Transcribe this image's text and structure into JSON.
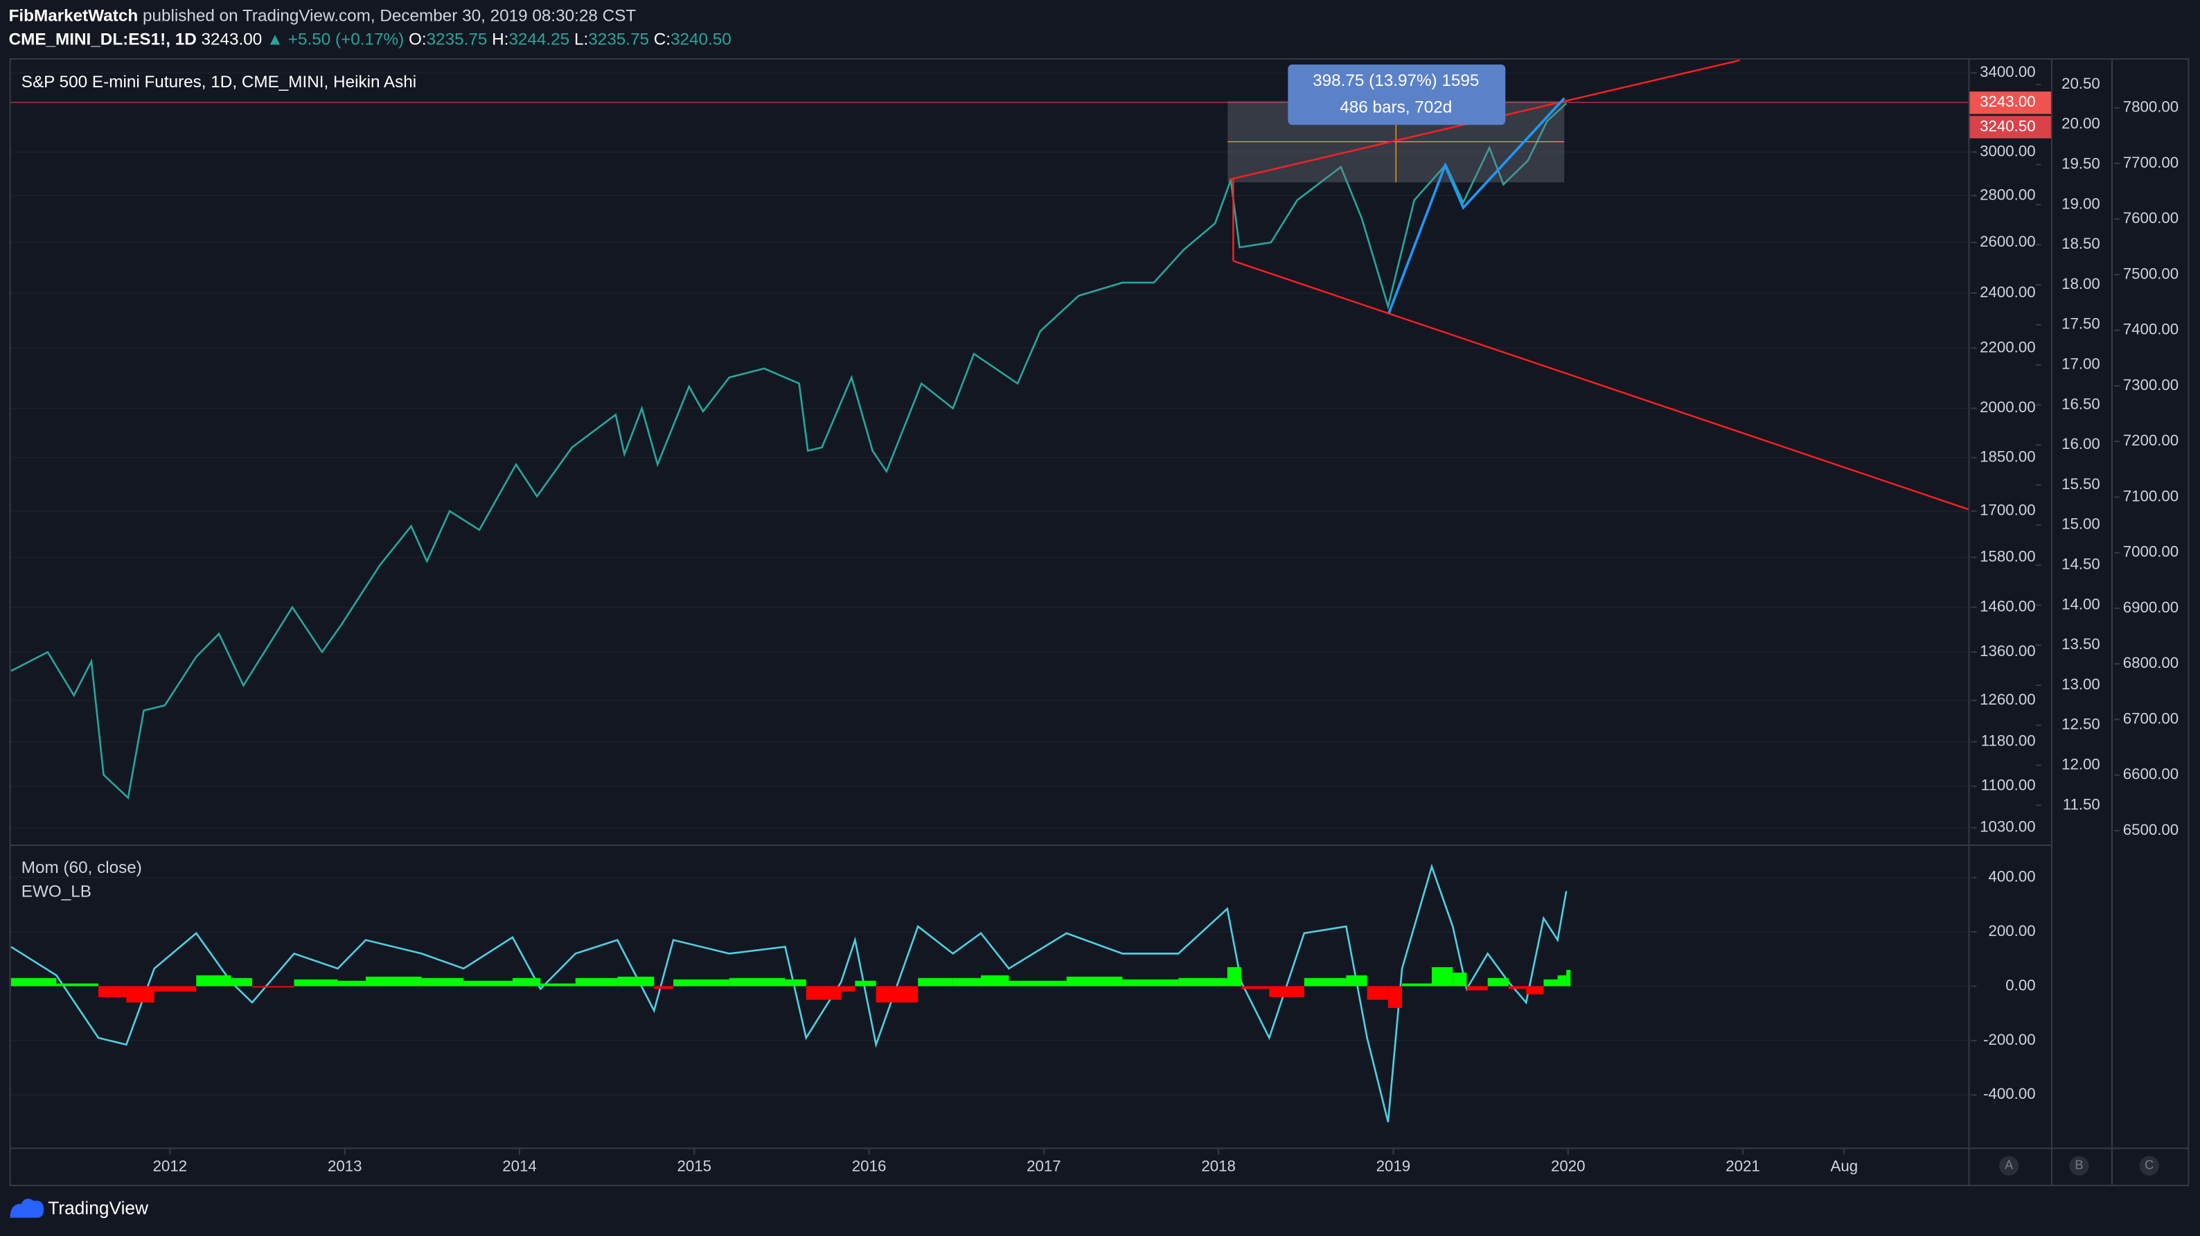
{
  "header": {
    "author": "FibMarketWatch",
    "published": "published on TradingView.com, December 30, 2019 08:30:28 CST",
    "symbol": "CME_MINI_DL:ES1!, 1D",
    "last": "3243.00",
    "change": "▲ +5.50 (+0.17%)",
    "ohlc": [
      {
        "key": "O:",
        "value": "3235.75"
      },
      {
        "key": "H:",
        "value": "3244.25"
      },
      {
        "key": "L:",
        "value": "3235.75"
      },
      {
        "key": "C:",
        "value": "3240.50"
      }
    ]
  },
  "chart_data": [
    {
      "type": "line",
      "title": "S&P 500 E-mini Futures, 1D, CME_MINI, Heikin Ashi",
      "log_scale": true,
      "xlim": [
        2011.085,
        2022.29
      ],
      "x": [
        2011.09,
        2011.3,
        2011.45,
        2011.55,
        2011.62,
        2011.76,
        2011.85,
        2011.97,
        2012.15,
        2012.28,
        2012.42,
        2012.7,
        2012.87,
        2012.98,
        2013.2,
        2013.38,
        2013.47,
        2013.6,
        2013.77,
        2013.98,
        2014.1,
        2014.3,
        2014.55,
        2014.6,
        2014.7,
        2014.79,
        2014.97,
        2015.05,
        2015.2,
        2015.4,
        2015.6,
        2015.65,
        2015.73,
        2015.9,
        2016.02,
        2016.1,
        2016.3,
        2016.48,
        2016.6,
        2016.85,
        2016.98,
        2017.2,
        2017.45,
        2017.63,
        2017.8,
        2017.98,
        2018.07,
        2018.12,
        2018.3,
        2018.45,
        2018.7,
        2018.82,
        2018.97,
        2019.12,
        2019.3,
        2019.4,
        2019.55,
        2019.63,
        2019.77,
        2019.88,
        2019.99
      ],
      "series": [
        {
          "color": "#26a69a",
          "values": [
            1320,
            1360,
            1270,
            1340,
            1120,
            1080,
            1240,
            1250,
            1350,
            1400,
            1290,
            1460,
            1360,
            1420,
            1560,
            1660,
            1570,
            1700,
            1650,
            1830,
            1740,
            1880,
            1980,
            1860,
            2000,
            1830,
            2070,
            1990,
            2100,
            2130,
            2080,
            1870,
            1880,
            2100,
            1870,
            1810,
            2080,
            2000,
            2180,
            2080,
            2260,
            2390,
            2440,
            2440,
            2570,
            2680,
            2870,
            2580,
            2600,
            2780,
            2930,
            2700,
            2350,
            2780,
            2940,
            2770,
            3020,
            2850,
            2960,
            3150,
            3240
          ]
        }
      ],
      "ylim": [
        1003,
        3476
      ],
      "yticks": [
        {
          "value": 3400,
          "label": "3400.00"
        },
        {
          "value": 3000,
          "label": "3000.00"
        },
        {
          "value": 2800,
          "label": "2800.00"
        },
        {
          "value": 2600,
          "label": "2600.00"
        },
        {
          "value": 2400,
          "label": "2400.00"
        },
        {
          "value": 2200,
          "label": "2200.00"
        },
        {
          "value": 2000,
          "label": "2000.00"
        },
        {
          "value": 1850,
          "label": "1850.00"
        },
        {
          "value": 1700,
          "label": "1700.00"
        },
        {
          "value": 1580,
          "label": "1580.00"
        },
        {
          "value": 1460,
          "label": "1460.00"
        },
        {
          "value": 1360,
          "label": "1360.00"
        },
        {
          "value": 1260,
          "label": "1260.00"
        },
        {
          "value": 1180,
          "label": "1180.00"
        },
        {
          "value": 1100,
          "label": "1100.00"
        },
        {
          "value": 1030,
          "label": "1030.00"
        }
      ],
      "price_labels": [
        {
          "value": 3243,
          "label": "3243.00"
        },
        {
          "value": 3240.5,
          "label": "3240.50"
        }
      ],
      "y2lim": [
        11.01,
        20.82
      ],
      "y2ticks": [
        {
          "value": 20.5,
          "label": "20.50"
        },
        {
          "value": 20,
          "label": "20.00"
        },
        {
          "value": 19.5,
          "label": "19.50"
        },
        {
          "value": 19,
          "label": "19.00"
        },
        {
          "value": 18.5,
          "label": "18.50"
        },
        {
          "value": 18,
          "label": "18.00"
        },
        {
          "value": 17.5,
          "label": "17.50"
        },
        {
          "value": 17,
          "label": "17.00"
        },
        {
          "value": 16.5,
          "label": "16.50"
        },
        {
          "value": 16,
          "label": "16.00"
        },
        {
          "value": 15.5,
          "label": "15.50"
        },
        {
          "value": 15,
          "label": "15.00"
        },
        {
          "value": 14.5,
          "label": "14.50"
        },
        {
          "value": 14,
          "label": "14.00"
        },
        {
          "value": 13.5,
          "label": "13.50"
        },
        {
          "value": 13,
          "label": "13.00"
        },
        {
          "value": 12.5,
          "label": "12.50"
        },
        {
          "value": 12,
          "label": "12.00"
        },
        {
          "value": 11.5,
          "label": "11.50"
        }
      ],
      "y3lim": [
        6475,
        7888
      ],
      "y3ticks": [
        {
          "value": 7800,
          "label": "7800.00"
        },
        {
          "value": 7700,
          "label": "7700.00"
        },
        {
          "value": 7600,
          "label": "7600.00"
        },
        {
          "value": 7500,
          "label": "7500.00"
        },
        {
          "value": 7400,
          "label": "7400.00"
        },
        {
          "value": 7300,
          "label": "7300.00"
        },
        {
          "value": 7200,
          "label": "7200.00"
        },
        {
          "value": 7100,
          "label": "7100.00"
        },
        {
          "value": 7000,
          "label": "7000.00"
        },
        {
          "value": 6900,
          "label": "6900.00"
        },
        {
          "value": 6800,
          "label": "6800.00"
        },
        {
          "value": 6700,
          "label": "6700.00"
        },
        {
          "value": 6600,
          "label": "6600.00"
        },
        {
          "value": 6500,
          "label": "6500.00"
        }
      ],
      "annotations": [
        "398.75 (13.97%) 1595",
        "486 bars, 702d"
      ]
    },
    {
      "type": "line",
      "xlim": [
        2011.085,
        2022.29
      ],
      "x": [
        2011.09,
        2011.35,
        2011.59,
        2011.75,
        2011.91,
        2012.15,
        2012.35,
        2012.47,
        2012.71,
        2012.96,
        2013.12,
        2013.44,
        2013.68,
        2013.96,
        2014.12,
        2014.32,
        2014.56,
        2014.77,
        2014.88,
        2015.2,
        2015.52,
        2015.64,
        2015.84,
        2015.92,
        2016.04,
        2016.28,
        2016.48,
        2016.64,
        2016.8,
        2017.13,
        2017.45,
        2017.77,
        2018.05,
        2018.13,
        2018.29,
        2018.49,
        2018.73,
        2018.85,
        2018.97,
        2019.05,
        2019.22,
        2019.34,
        2019.42,
        2019.54,
        2019.66,
        2019.76,
        2019.86,
        2019.94,
        2019.99
      ],
      "series": [
        {
          "name": "Mom (60, close)",
          "color": "#4dd0e1",
          "values": [
            145,
            40,
            -190,
            -215,
            65,
            195,
            15,
            -60,
            120,
            65,
            170,
            120,
            65,
            180,
            -10,
            120,
            170,
            -90,
            170,
            120,
            145,
            -190,
            15,
            170,
            -215,
            220,
            120,
            195,
            65,
            195,
            120,
            120,
            285,
            15,
            -190,
            195,
            220,
            -190,
            -500,
            65,
            440,
            220,
            -10,
            120,
            15,
            -60,
            250,
            170,
            350
          ]
        },
        {
          "name": "EWO_LB",
          "style": "histogram",
          "color": "#00ff00",
          "negative_color": "#ff0000",
          "values": [
            30,
            10,
            -40,
            -60,
            -20,
            40,
            30,
            -5,
            25,
            20,
            35,
            30,
            20,
            30,
            10,
            30,
            35,
            -10,
            25,
            30,
            25,
            -50,
            -20,
            20,
            -60,
            30,
            30,
            40,
            20,
            35,
            25,
            30,
            70,
            -10,
            -40,
            30,
            40,
            -50,
            -80,
            10,
            70,
            50,
            -15,
            30,
            -10,
            -30,
            25,
            40,
            60
          ]
        }
      ],
      "ylim": [
        -594,
        516
      ],
      "yticks": [
        {
          "value": 400,
          "label": "400.00"
        },
        {
          "value": 200,
          "label": "200.00"
        },
        {
          "value": 0,
          "label": "0.00"
        },
        {
          "value": -200,
          "label": "-200.00"
        },
        {
          "value": -400,
          "label": "-400.00"
        }
      ],
      "xticks": [
        2012,
        2013,
        2014,
        2015,
        2016,
        2017,
        2018,
        2019,
        2020,
        2021,
        {
          "value": 2021.58,
          "label": "Aug"
        }
      ]
    }
  ],
  "axis_buttons": [
    "A",
    "B",
    "C"
  ],
  "footer": "TradingView"
}
